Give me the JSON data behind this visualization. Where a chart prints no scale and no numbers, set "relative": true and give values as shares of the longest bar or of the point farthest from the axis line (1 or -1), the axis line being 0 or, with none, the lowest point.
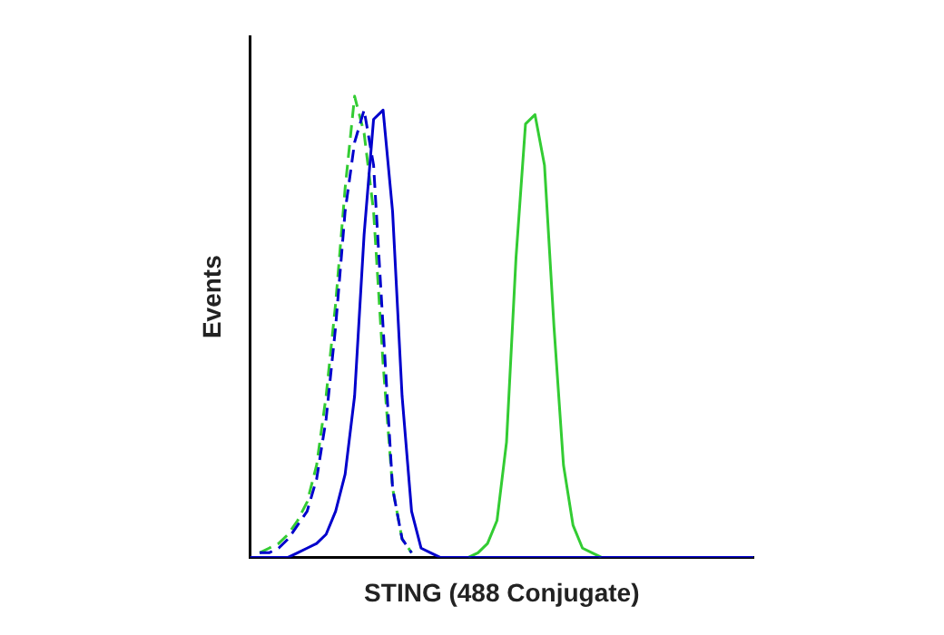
{
  "chart_data": {
    "type": "line",
    "relative": true,
    "tick_labels": false,
    "xlabel": "STING (488 Conjugate)",
    "ylabel": "Events",
    "categories": [
      null,
      null,
      null,
      null,
      null,
      null,
      null,
      null,
      null,
      null,
      null,
      null,
      null,
      null,
      null,
      null,
      null,
      null,
      null,
      null,
      null,
      null,
      null,
      null,
      null,
      null,
      null,
      null,
      null,
      null,
      null,
      null,
      null,
      null,
      null,
      null,
      null,
      null,
      null,
      null,
      null,
      null,
      null,
      null,
      null,
      null,
      null,
      null,
      null,
      null,
      null,
      null,
      null,
      null
    ],
    "series": [
      {
        "color": "#0000cc",
        "line_style": "solid",
        "values": [
          0,
          0,
          0,
          0,
          0,
          0.01,
          0.02,
          0.03,
          0.05,
          0.1,
          0.18,
          0.35,
          0.7,
          0.95,
          0.97,
          0.75,
          0.35,
          0.1,
          0.02,
          0.01,
          0,
          0,
          0,
          0,
          0,
          0,
          0,
          0,
          0,
          0,
          0,
          0,
          0,
          0,
          0,
          0,
          0,
          0,
          0,
          0,
          0,
          0,
          0,
          0,
          0,
          0,
          0,
          0,
          0,
          0,
          0,
          0,
          0,
          0
        ]
      },
      {
        "color": "#33cc33",
        "line_style": "solid",
        "values": [
          null,
          null,
          null,
          null,
          null,
          null,
          null,
          null,
          null,
          null,
          null,
          null,
          null,
          null,
          null,
          null,
          null,
          null,
          null,
          null,
          null,
          null,
          null,
          0,
          0.01,
          0.03,
          0.08,
          0.25,
          0.65,
          0.94,
          0.96,
          0.85,
          0.5,
          0.2,
          0.07,
          0.02,
          0.01,
          0,
          null,
          null,
          null,
          null,
          null,
          null,
          null,
          null,
          null,
          null,
          null,
          null,
          null,
          null,
          null,
          null
        ]
      },
      {
        "color": "#0000cc",
        "line_style": "dashed",
        "values": [
          null,
          0.01,
          0.01,
          0.02,
          0.04,
          0.07,
          0.1,
          0.17,
          0.3,
          0.5,
          0.75,
          0.9,
          0.97,
          0.85,
          0.5,
          0.15,
          0.04,
          0.01,
          null,
          null,
          null,
          null,
          null,
          null,
          null,
          null,
          null,
          null,
          null,
          null,
          null,
          null,
          null,
          null,
          null,
          null,
          null,
          null,
          null,
          null,
          null,
          null,
          null,
          null,
          null,
          null,
          null,
          null,
          null,
          null,
          null,
          null,
          null,
          null
        ]
      },
      {
        "color": "#33cc33",
        "line_style": "dashed",
        "values": [
          null,
          0.01,
          0.02,
          0.03,
          0.05,
          0.08,
          0.12,
          0.2,
          0.35,
          0.55,
          0.8,
          1,
          0.92,
          0.75,
          0.42,
          0.15,
          0.04,
          0.01,
          null,
          null,
          null,
          null,
          null,
          null,
          null,
          null,
          null,
          null,
          null,
          null,
          null,
          null,
          null,
          null,
          null,
          null,
          null,
          null,
          null,
          null,
          null,
          null,
          null,
          null,
          null,
          null,
          null,
          null,
          null,
          null,
          null,
          null,
          null,
          null
        ]
      }
    ]
  }
}
